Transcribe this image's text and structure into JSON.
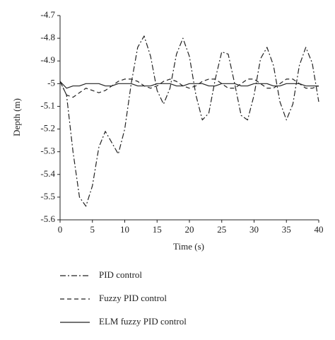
{
  "chart_data": {
    "type": "line",
    "xlabel": "Time (s)",
    "ylabel": "Depth (m)",
    "x": [
      0,
      1,
      2,
      3,
      4,
      5,
      6,
      7,
      8,
      9,
      10,
      11,
      12,
      13,
      14,
      15,
      16,
      17,
      18,
      19,
      20,
      21,
      22,
      23,
      24,
      25,
      26,
      27,
      28,
      29,
      30,
      31,
      32,
      33,
      34,
      35,
      36,
      37,
      38,
      39,
      40
    ],
    "series": [
      {
        "name": "PID control",
        "color": "#222222",
        "dash": "dashdot",
        "values": [
          -4.99,
          -5.05,
          -5.3,
          -5.5,
          -5.54,
          -5.45,
          -5.28,
          -5.21,
          -5.26,
          -5.31,
          -5.2,
          -5.0,
          -4.84,
          -4.79,
          -4.88,
          -5.03,
          -5.09,
          -5.02,
          -4.87,
          -4.8,
          -4.88,
          -5.05,
          -5.16,
          -5.13,
          -4.98,
          -4.86,
          -4.87,
          -5.0,
          -5.14,
          -5.16,
          -5.05,
          -4.89,
          -4.84,
          -4.92,
          -5.08,
          -5.16,
          -5.09,
          -4.92,
          -4.84,
          -4.91,
          -5.08
        ]
      },
      {
        "name": "Fuzzy PID control",
        "color": "#222222",
        "dash": "dashed",
        "values": [
          -4.99,
          -5.05,
          -5.06,
          -5.04,
          -5.02,
          -5.03,
          -5.04,
          -5.03,
          -5.01,
          -4.99,
          -4.98,
          -4.98,
          -4.99,
          -5.01,
          -5.02,
          -5.01,
          -4.99,
          -4.98,
          -4.99,
          -5.01,
          -5.02,
          -5.01,
          -4.99,
          -4.98,
          -4.98,
          -5.0,
          -5.02,
          -5.02,
          -5.0,
          -4.98,
          -4.98,
          -5.0,
          -5.02,
          -5.02,
          -5.0,
          -4.98,
          -4.98,
          -5.0,
          -5.02,
          -5.02,
          -5.01
        ]
      },
      {
        "name": "ELM fuzzy PID control",
        "color": "#222222",
        "dash": "solid",
        "values": [
          -4.99,
          -5.02,
          -5.01,
          -5.01,
          -5.0,
          -5.0,
          -5.0,
          -5.01,
          -5.01,
          -5.0,
          -5.0,
          -5.0,
          -5.01,
          -5.01,
          -5.01,
          -5.0,
          -5.0,
          -5.0,
          -5.01,
          -5.01,
          -5.0,
          -5.0,
          -5.0,
          -5.01,
          -5.01,
          -5.0,
          -5.0,
          -5.0,
          -5.01,
          -5.01,
          -5.0,
          -5.0,
          -5.0,
          -5.01,
          -5.01,
          -5.0,
          -5.0,
          -5.0,
          -5.01,
          -5.01,
          -5.01
        ]
      }
    ],
    "xlim": [
      0,
      40
    ],
    "xticks": [
      0,
      5,
      10,
      15,
      20,
      25,
      30,
      35,
      40
    ],
    "ylim": [
      -5.6,
      -4.7
    ],
    "yticks": [
      -5.6,
      -5.5,
      -5.4,
      -5.3,
      -5.2,
      -5.1,
      -5,
      -4.9,
      -4.8,
      -4.7
    ],
    "grid": false,
    "legend": "bottom"
  }
}
